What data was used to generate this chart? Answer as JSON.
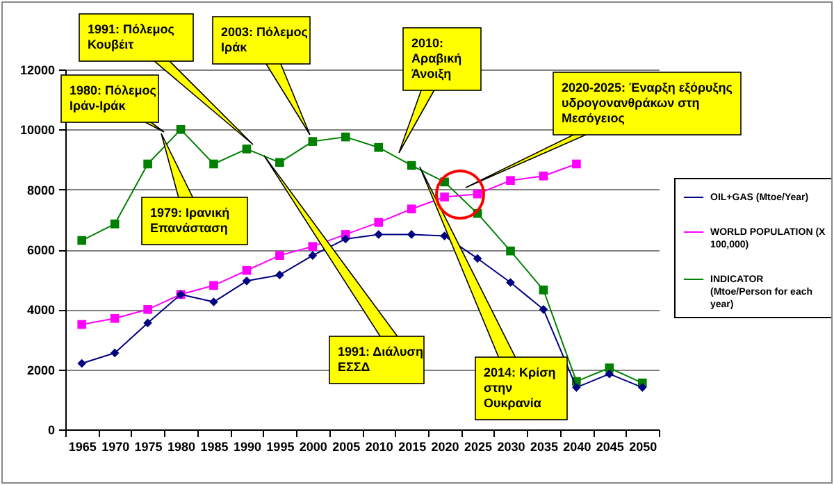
{
  "chart_data": {
    "type": "line",
    "categories": [
      "1965",
      "1970",
      "1975",
      "1980",
      "1985",
      "1990",
      "1995",
      "2000",
      "2005",
      "2010",
      "2015",
      "2020",
      "2025",
      "2030",
      "2035",
      "2040",
      "2045",
      "2050"
    ],
    "series": [
      {
        "name": "OIL+GAS (Mtoe/Year)",
        "color": "#000080",
        "marker": "diamond",
        "values": [
          2200,
          2550,
          3550,
          4500,
          4250,
          4950,
          5150,
          5800,
          6350,
          6500,
          6500,
          6450,
          5700,
          4900,
          4000,
          1400,
          1850,
          1400
        ]
      },
      {
        "name": "WORLD POPULATION (X 100,000)",
        "color": "#ff00ff",
        "marker": "square",
        "values": [
          3500,
          3700,
          4000,
          4500,
          4800,
          5300,
          5800,
          6100,
          6500,
          6900,
          7350,
          7750,
          7850,
          8300,
          8450,
          8850,
          null,
          null
        ]
      },
      {
        "name": "INDICATOR (Mtoe/Person for each year)",
        "color": "#008000",
        "marker": "square",
        "values": [
          6300,
          6850,
          8850,
          10000,
          8850,
          9350,
          8900,
          9600,
          9750,
          9400,
          8800,
          8250,
          7200,
          5950,
          4650,
          1600,
          2050,
          1550
        ]
      }
    ],
    "ylim": [
      0,
      12000
    ],
    "yticks": [
      0,
      2000,
      4000,
      6000,
      8000,
      10000,
      12000
    ],
    "grid": "y",
    "legend": "right",
    "annotations": [
      "1991: Πόλεμος Κουβέιτ",
      "2003: Πόλεμος Ιράκ",
      "2010: Αραβική Άνοιξη",
      "1980: Πόλεμος Ιράν-Ιράκ",
      "2020-2025: Έναρξη εξόρυξης υδρογονανθράκων  στη Μεσόγειος",
      "1979: Ιρανική Επανάσταση",
      "1991: Διάλυση ΕΣΣΔ",
      "2014: Κρίση στην Ουκρανία"
    ]
  }
}
